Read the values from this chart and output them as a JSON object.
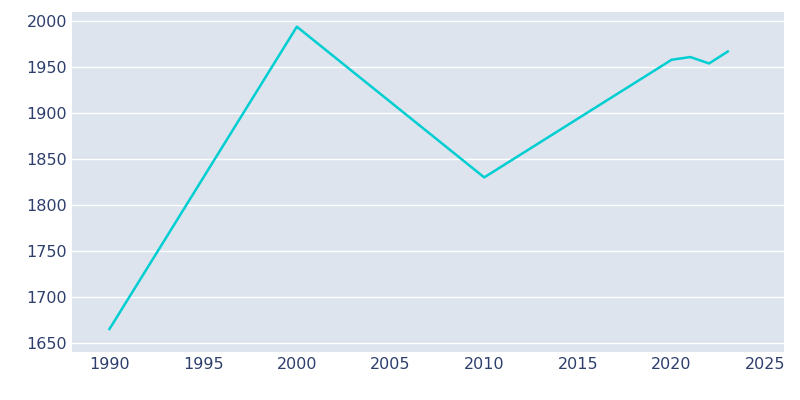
{
  "years": [
    1990,
    2000,
    2010,
    2020,
    2021,
    2022,
    2023
  ],
  "population": [
    1665,
    1994,
    1830,
    1958,
    1961,
    1954,
    1967
  ],
  "line_color": "#00CED1",
  "axes_bg_color": "#DDE4EE",
  "fig_bg_color": "#FFFFFF",
  "grid_color": "#FFFFFF",
  "tick_color": "#2E3F6E",
  "xlim": [
    1988,
    2026
  ],
  "ylim": [
    1640,
    2010
  ],
  "xticks": [
    1990,
    1995,
    2000,
    2005,
    2010,
    2015,
    2020,
    2025
  ],
  "yticks": [
    1650,
    1700,
    1750,
    1800,
    1850,
    1900,
    1950,
    2000
  ],
  "line_width": 1.8,
  "tick_fontsize": 11.5
}
